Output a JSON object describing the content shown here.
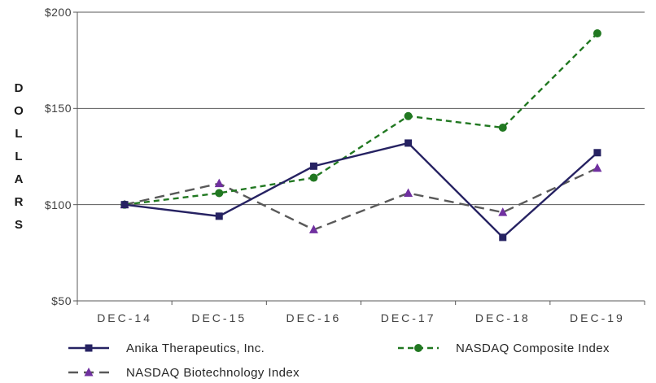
{
  "chart_data": {
    "type": "line",
    "title": "",
    "ylabel": "DOLLARS",
    "xlabel": "",
    "y_ticks": [
      "$200",
      "$150",
      "$100",
      "$50"
    ],
    "y_min": 50,
    "y_max": 200,
    "gridlines": [
      200,
      150,
      100
    ],
    "grid": true,
    "legend_position": "bottom",
    "categories": [
      "DEC-14",
      "DEC-15",
      "DEC-16",
      "DEC-17",
      "DEC-18",
      "DEC-19"
    ],
    "series": [
      {
        "name": "Anika Therapeutics,  Inc.",
        "values": [
          100,
          94,
          120,
          132,
          83,
          127
        ],
        "color": "#262262",
        "line_style": "solid",
        "dash": "",
        "marker": "square"
      },
      {
        "name": "NASDAQ Composite Index",
        "values": [
          100,
          106,
          114,
          146,
          140,
          189
        ],
        "color": "#217821",
        "line_style": "dashed",
        "dash": "7 5",
        "marker": "circle"
      },
      {
        "name": "NASDAQ Biotechnology Index",
        "values": [
          100,
          111,
          87,
          106,
          96,
          119
        ],
        "color": "#595959",
        "marker_color": "#7030A0",
        "line_style": "dashed",
        "dash": "12 7",
        "marker": "triangle"
      }
    ]
  },
  "colors": {
    "grid": "#595959",
    "axis": "#595959",
    "text": "#404040",
    "background": "#FFFFFF"
  }
}
